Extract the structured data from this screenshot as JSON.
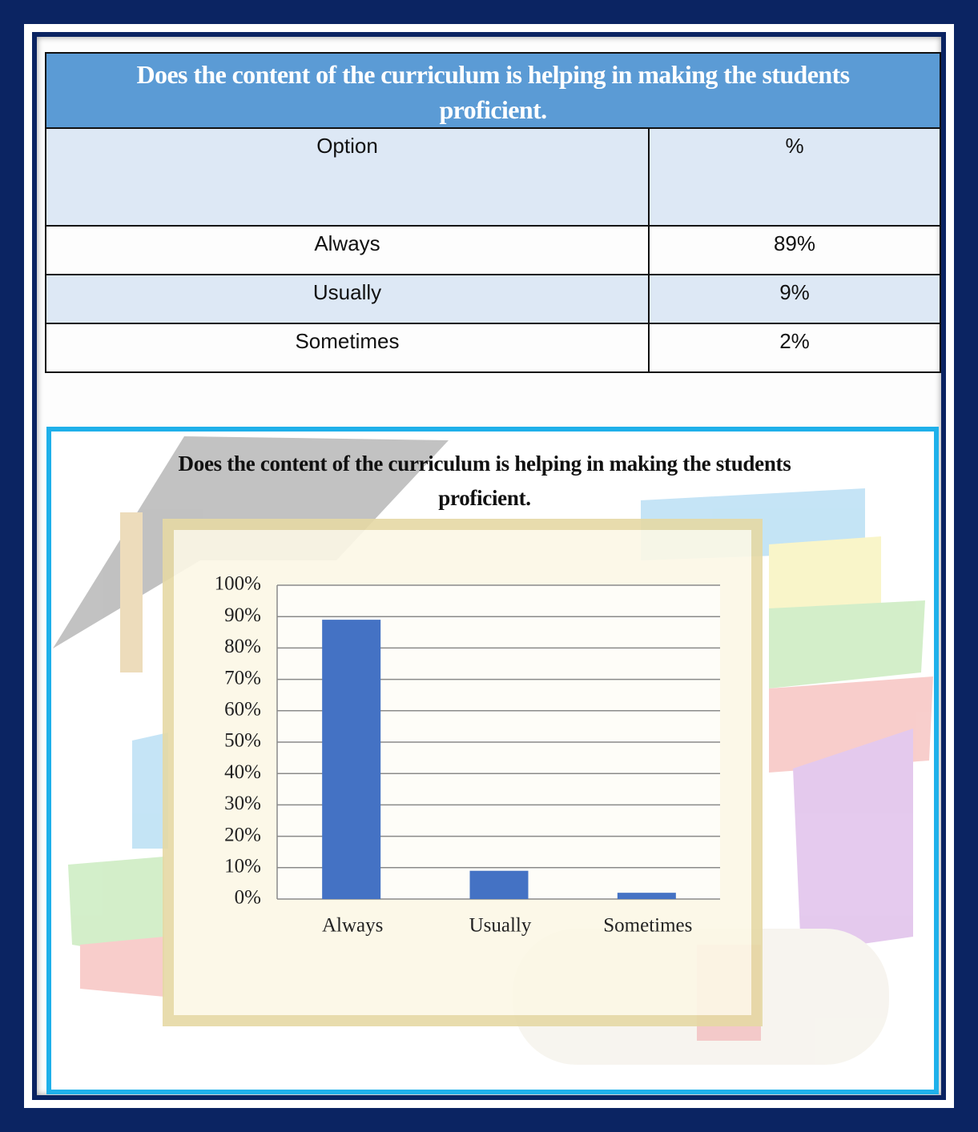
{
  "table": {
    "title": "Does the content of the curriculum is helping in making the students proficient.",
    "header": [
      "Option",
      "%"
    ],
    "rows": [
      [
        "Always",
        "89%"
      ],
      [
        "Usually",
        "9%"
      ],
      [
        "Sometimes",
        "2%"
      ]
    ]
  },
  "chart_data": {
    "type": "bar",
    "title": "Does the content of the curriculum is helping in making the students proficient.",
    "categories": [
      "Always",
      "Usually",
      "Sometimes"
    ],
    "values": [
      89,
      9,
      2
    ],
    "color": "#4472c4",
    "ylim": [
      0,
      100
    ],
    "yticks": [
      {
        "value": 0,
        "label": "0%"
      },
      {
        "value": 10,
        "label": "10%"
      },
      {
        "value": 20,
        "label": "20%"
      },
      {
        "value": 30,
        "label": "30%"
      },
      {
        "value": 40,
        "label": "40%"
      },
      {
        "value": 50,
        "label": "50%"
      },
      {
        "value": 60,
        "label": "60%"
      },
      {
        "value": 70,
        "label": "70%"
      },
      {
        "value": 80,
        "label": "80%"
      },
      {
        "value": 90,
        "label": "90%"
      },
      {
        "value": 100,
        "label": "100%"
      }
    ],
    "grid": true
  }
}
